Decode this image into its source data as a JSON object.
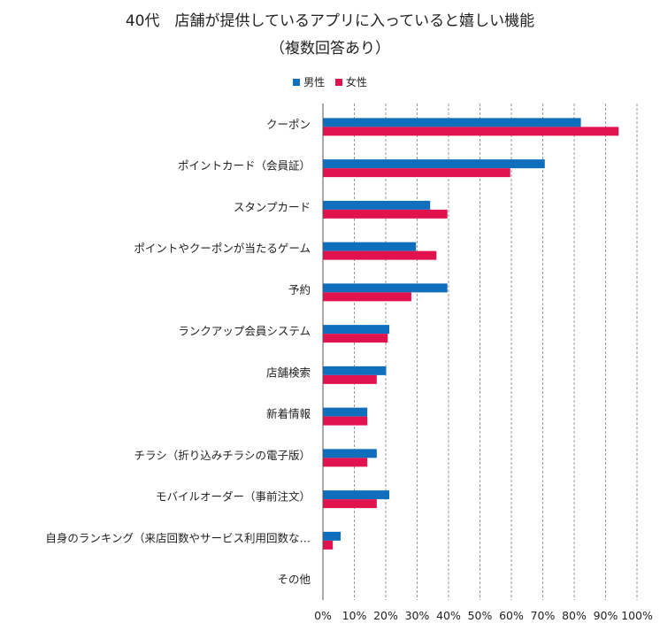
{
  "chart_data": {
    "type": "bar",
    "orientation": "horizontal",
    "title": "40代　店舗が提供しているアプリに入っていると嬉しい機能",
    "subtitle": "（複数回答あり）",
    "categories": [
      "クーポン",
      "ポイントカード（会員証）",
      "スタンプカード",
      "ポイントやクーポンが当たるゲーム",
      "予約",
      "ランクアップ会員システム",
      "店舗検索",
      "新着情報",
      "チラシ（折り込みチラシの電子版）",
      "モバイルオーダー（事前注文）",
      "自身のランキング（来店回数やサービス利用回数な…",
      "その他"
    ],
    "series": [
      {
        "name": "男性",
        "color": "#0f6fbd",
        "values": [
          82,
          70.5,
          34,
          29.5,
          39.5,
          21,
          20,
          14,
          17,
          21,
          5.5,
          0
        ]
      },
      {
        "name": "女性",
        "color": "#e0134e",
        "values": [
          94,
          59.5,
          39.5,
          36,
          28,
          20.5,
          17,
          14,
          14,
          17,
          3,
          0
        ]
      }
    ],
    "xlim": [
      0,
      100
    ],
    "xticks": [
      "0%",
      "10%",
      "20%",
      "30%",
      "40%",
      "50%",
      "60%",
      "70%",
      "80%",
      "90%",
      "100%"
    ],
    "grid": "vertical-dashed",
    "legend_position": "top"
  }
}
